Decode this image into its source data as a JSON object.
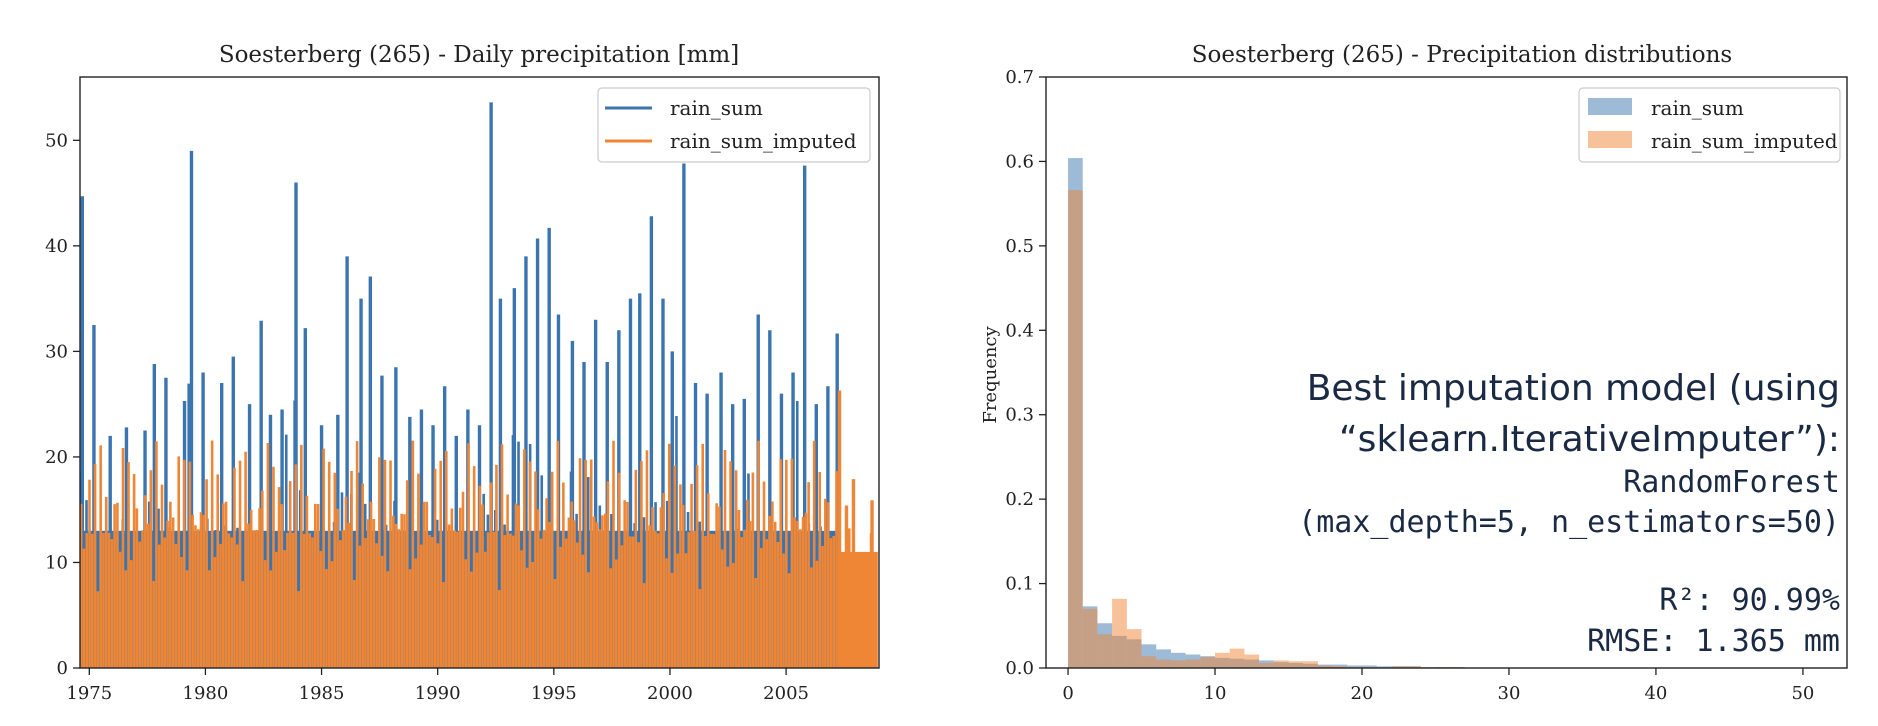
{
  "chart_data": [
    {
      "type": "line",
      "title": "Soesterberg (265) - Daily precipitation [mm]",
      "xlabel": "",
      "ylabel": "",
      "xlim": [
        1974.6,
        2009.0
      ],
      "ylim": [
        0,
        56
      ],
      "xticks": [
        "1975",
        "1980",
        "1985",
        "1990",
        "1995",
        "2000",
        "2005"
      ],
      "yticks": [
        "0",
        "10",
        "20",
        "30",
        "40",
        "50"
      ],
      "legend_position": "top-right",
      "series": [
        {
          "name": "rain_sum",
          "color": "#3b75af",
          "x": [
            1974.7,
            1975.2,
            1975.9,
            1976.6,
            1977.4,
            1977.8,
            1978.3,
            1979.1,
            1979.4,
            1979.9,
            1980.7,
            1981.2,
            1981.9,
            1982.4,
            1982.8,
            1983.3,
            1983.9,
            1984.3,
            1985.0,
            1985.7,
            1986.1,
            1986.7,
            1987.1,
            1987.6,
            1988.2,
            1988.8,
            1989.3,
            1989.8,
            1990.3,
            1990.8,
            1991.3,
            1991.8,
            1992.3,
            1992.7,
            1993.3,
            1993.8,
            1994.3,
            1994.8,
            1995.2,
            1995.8,
            1996.3,
            1996.8,
            1997.3,
            1997.8,
            1998.3,
            1998.7,
            1999.2,
            1999.7,
            2000.1,
            2000.6,
            2001.1,
            2001.6,
            2002.2,
            2002.7,
            2003.2,
            2003.8,
            2004.3,
            2004.8,
            2005.3,
            2005.8,
            2006.3,
            2006.8,
            2007.2
          ],
          "y": [
            44.7,
            32.5,
            22.0,
            22.8,
            22.5,
            28.8,
            27.5,
            25.3,
            49.0,
            28.0,
            27.0,
            29.5,
            25.0,
            32.9,
            24.0,
            24.5,
            46.0,
            32.2,
            23.0,
            24.0,
            39.0,
            35.0,
            37.1,
            27.7,
            28.5,
            23.8,
            24.5,
            23.0,
            26.7,
            22.0,
            24.5,
            23.0,
            53.6,
            35.0,
            36.0,
            39.0,
            40.7,
            41.7,
            33.5,
            31.0,
            29.0,
            33.0,
            29.0,
            32.0,
            35.0,
            35.5,
            42.8,
            35.0,
            30.0,
            47.8,
            27.0,
            26.0,
            28.0,
            25.0,
            25.5,
            33.5,
            32.0,
            26.0,
            28.0,
            47.6,
            25.0,
            26.7,
            31.7
          ]
        },
        {
          "name": "rain_sum_imputed",
          "color": "#ef8636",
          "x": [
            2007.3,
            2007.6,
            2007.9,
            2008.3,
            2008.7
          ],
          "y": [
            26.3,
            15.4,
            17.9,
            8.0,
            15.9
          ]
        }
      ]
    },
    {
      "type": "bar",
      "title": "Soesterberg (265) - Precipitation distributions",
      "xlabel": "",
      "ylabel": "Frequency",
      "xlim": [
        -1.5,
        53
      ],
      "ylim": [
        0,
        0.7
      ],
      "xticks": [
        "0",
        "10",
        "20",
        "30",
        "40",
        "50"
      ],
      "yticks": [
        "0.0",
        "0.1",
        "0.2",
        "0.3",
        "0.4",
        "0.5",
        "0.6",
        "0.7"
      ],
      "legend_position": "top-right",
      "bin_edges": [
        0,
        1,
        2,
        3,
        4,
        5,
        6,
        7,
        8,
        9,
        10,
        11,
        12,
        13,
        14,
        15,
        16,
        17,
        18,
        19,
        20,
        21,
        22,
        23,
        24,
        25,
        26,
        27
      ],
      "series": [
        {
          "name": "rain_sum",
          "color": "#3b75af",
          "values": [
            0.604,
            0.073,
            0.053,
            0.038,
            0.034,
            0.028,
            0.022,
            0.018,
            0.016,
            0.014,
            0.012,
            0.011,
            0.01,
            0.009,
            0.007,
            0.006,
            0.005,
            0.004,
            0.004,
            0.003,
            0.003,
            0.002,
            0.002,
            0.002,
            0.001,
            0.001,
            0.001
          ]
        },
        {
          "name": "rain_sum_imputed",
          "color": "#ef8636",
          "values": [
            0.566,
            0.07,
            0.04,
            0.082,
            0.046,
            0.014,
            0.01,
            0.009,
            0.01,
            0.013,
            0.018,
            0.023,
            0.016,
            0.006,
            0.009,
            0.008,
            0.008,
            0.003,
            0.002,
            0.001,
            0.001,
            0.0,
            0.002,
            0.002,
            0.0,
            0.001,
            0.001
          ]
        }
      ]
    }
  ],
  "annotation": {
    "line1": "Best imputation model (using",
    "line2": "“sklearn.IterativeImputer”):",
    "line3": "RandomForest",
    "line4": "(max_depth=5, n_estimators=50)",
    "r2_label": "R²: 90.99%",
    "rmse_label": "RMSE: 1.365 mm"
  }
}
